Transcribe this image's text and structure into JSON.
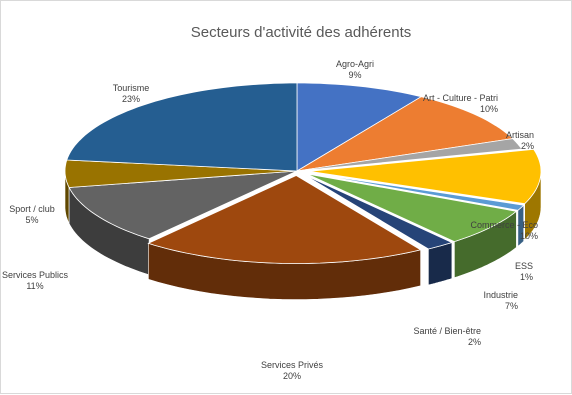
{
  "chart_data": {
    "type": "pie",
    "title": "Secteurs d'activité des adhérents",
    "legend": "none",
    "slices": [
      {
        "label": "Agro-Agri",
        "value": 9,
        "value_label": "9%",
        "color": "#4472c4",
        "exploded": false
      },
      {
        "label": "Art - Culture - Patri",
        "value": 10,
        "value_label": "10%",
        "color": "#ed7d31",
        "exploded": false
      },
      {
        "label": "Artisan",
        "value": 2,
        "value_label": "2%",
        "color": "#a5a5a5",
        "exploded": false
      },
      {
        "label": "Commerce - Eco",
        "value": 10,
        "value_label": "10%",
        "color": "#ffc000",
        "exploded": true
      },
      {
        "label": "ESS",
        "value": 1,
        "value_label": "1%",
        "color": "#5b9bd5",
        "exploded": true
      },
      {
        "label": "Industrie",
        "value": 7,
        "value_label": "7%",
        "color": "#70ad47",
        "exploded": true
      },
      {
        "label": "Santé / Bien-être",
        "value": 2,
        "value_label": "2%",
        "color": "#264478",
        "exploded": true
      },
      {
        "label": "Services Privés",
        "value": 20,
        "value_label": "20%",
        "color": "#9e480e",
        "exploded": true
      },
      {
        "label": "Services Publics",
        "value": 11,
        "value_label": "11%",
        "color": "#636363",
        "exploded": false
      },
      {
        "label": "Sport / club",
        "value": 5,
        "value_label": "5%",
        "color": "#997300",
        "exploded": false
      },
      {
        "label": "Tourisme",
        "value": 23,
        "value_label": "23%",
        "color": "#255e91",
        "exploded": false
      }
    ]
  }
}
